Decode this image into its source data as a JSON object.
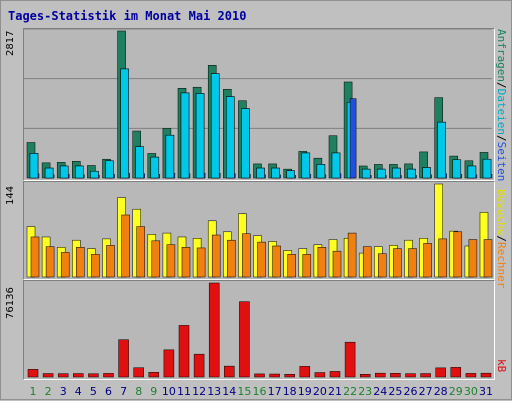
{
  "title": "Tages-Statistik im Monat Mai 2010",
  "colors": {
    "anfragen": "#1E8060",
    "dateien": "#00C8E8",
    "seiten": "#2050E0",
    "besuche": "#FFFF20",
    "rechner": "#F08010",
    "kb": "#E01010",
    "weekday": "#008000",
    "weekend": "#208030"
  },
  "legend": {
    "top": [
      {
        "text": "Anfragen",
        "color": "#1E8060"
      },
      {
        "text": "/",
        "color": "#000000"
      },
      {
        "text": "Dateien",
        "color": "#00A8C8"
      },
      {
        "text": "/",
        "color": "#000000"
      },
      {
        "text": "Seiten",
        "color": "#2050E0"
      }
    ],
    "mid": [
      {
        "text": "Besuche",
        "color": "#E0E000"
      },
      {
        "text": "/",
        "color": "#000000"
      },
      {
        "text": "Rechner",
        "color": "#F08010"
      }
    ],
    "bottom": [
      {
        "text": "kB",
        "color": "#E01010"
      }
    ]
  },
  "chart_data": [
    {
      "type": "bar",
      "ymax_label": "2817",
      "ylim": [
        0,
        2817
      ],
      "categories": [
        "1",
        "2",
        "3",
        "4",
        "5",
        "6",
        "7",
        "8",
        "9",
        "10",
        "11",
        "12",
        "13",
        "14",
        "15",
        "16",
        "17",
        "18",
        "19",
        "20",
        "21",
        "22",
        "23",
        "24",
        "25",
        "26",
        "27",
        "28",
        "29",
        "30",
        "31"
      ],
      "series": [
        {
          "name": "Anfragen",
          "values": [
            680,
            290,
            300,
            320,
            240,
            360,
            2817,
            900,
            470,
            950,
            1720,
            1740,
            2160,
            1700,
            1480,
            270,
            270,
            170,
            510,
            380,
            810,
            1840,
            230,
            260,
            260,
            270,
            500,
            1540,
            420,
            330,
            490
          ]
        },
        {
          "name": "Dateien",
          "values": [
            470,
            190,
            230,
            230,
            130,
            330,
            2090,
            600,
            400,
            820,
            1630,
            1620,
            2000,
            1560,
            1330,
            190,
            190,
            140,
            480,
            260,
            480,
            1450,
            170,
            170,
            190,
            170,
            200,
            1070,
            350,
            230,
            360
          ]
        },
        {
          "name": "Seiten",
          "values": [
            80,
            60,
            70,
            60,
            50,
            70,
            90,
            80,
            70,
            90,
            80,
            90,
            90,
            80,
            70,
            60,
            60,
            50,
            70,
            60,
            80,
            1520,
            50,
            50,
            50,
            50,
            60,
            80,
            70,
            60,
            70
          ]
        }
      ]
    },
    {
      "type": "bar",
      "ymax_label": "144",
      "ylim": [
        0,
        144
      ],
      "categories": [
        "1",
        "2",
        "3",
        "4",
        "5",
        "6",
        "7",
        "8",
        "9",
        "10",
        "11",
        "12",
        "13",
        "14",
        "15",
        "16",
        "17",
        "18",
        "19",
        "20",
        "21",
        "22",
        "23",
        "24",
        "25",
        "26",
        "27",
        "28",
        "29",
        "30",
        "31"
      ],
      "series": [
        {
          "name": "Besuche",
          "values": [
            78,
            62,
            46,
            57,
            44,
            59,
            123,
            105,
            66,
            68,
            62,
            60,
            87,
            70,
            98,
            64,
            55,
            41,
            44,
            50,
            58,
            60,
            37,
            47,
            49,
            57,
            60,
            144,
            71,
            48,
            100
          ]
        },
        {
          "name": "Rechner",
          "values": [
            62,
            47,
            38,
            46,
            35,
            49,
            96,
            78,
            56,
            50,
            46,
            45,
            65,
            57,
            67,
            54,
            48,
            35,
            35,
            46,
            40,
            68,
            47,
            36,
            44,
            44,
            52,
            59,
            70,
            58,
            58
          ]
        }
      ]
    },
    {
      "type": "bar",
      "ymax_label": "76136",
      "ylim": [
        0,
        76136
      ],
      "categories": [
        "1",
        "2",
        "3",
        "4",
        "5",
        "6",
        "7",
        "8",
        "9",
        "10",
        "11",
        "12",
        "13",
        "14",
        "15",
        "16",
        "17",
        "18",
        "19",
        "20",
        "21",
        "22",
        "23",
        "24",
        "25",
        "26",
        "27",
        "28",
        "29",
        "30",
        "31"
      ],
      "series": [
        {
          "name": "kB",
          "values": [
            6200,
            2800,
            2700,
            2800,
            2600,
            2900,
            30200,
            7500,
            3800,
            22000,
            41800,
            18500,
            76136,
            8800,
            61000,
            2500,
            2400,
            2200,
            8600,
            3600,
            4500,
            28200,
            2200,
            3100,
            3000,
            2700,
            2800,
            7400,
            7800,
            2900,
            3100
          ]
        }
      ]
    }
  ],
  "weekend_days": [
    "1",
    "2",
    "8",
    "9",
    "15",
    "16",
    "22",
    "23",
    "29",
    "30"
  ]
}
